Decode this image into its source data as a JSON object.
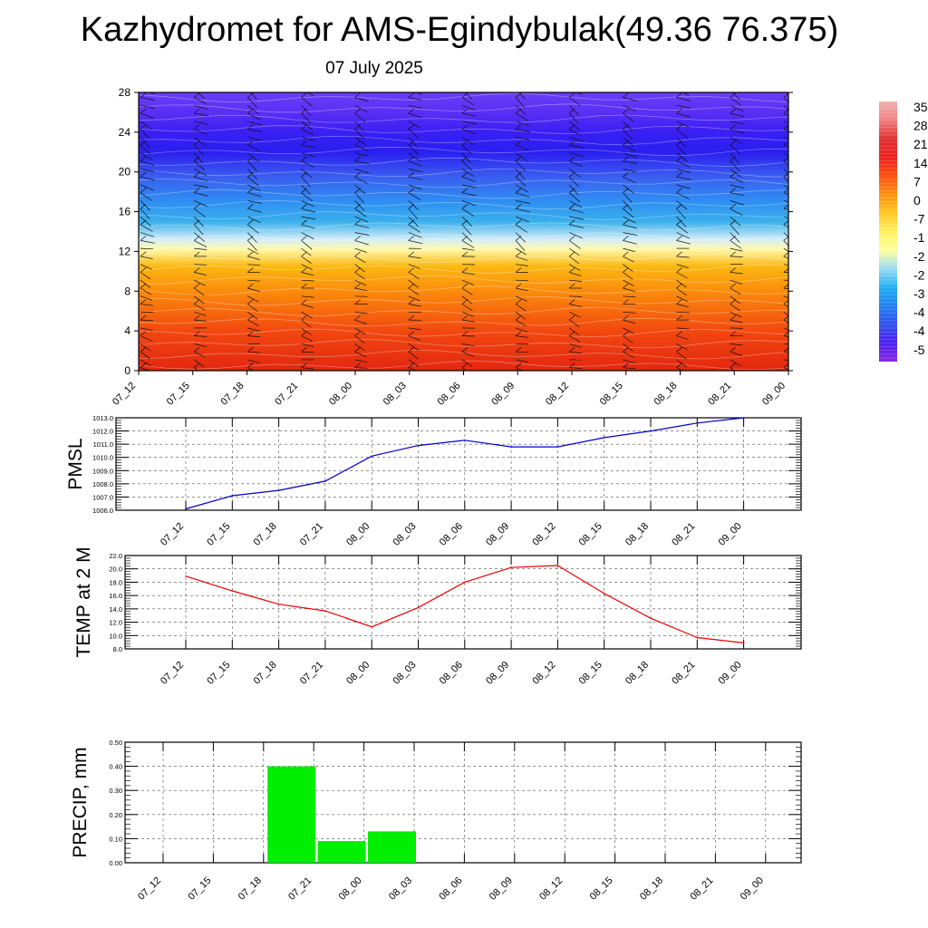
{
  "header": {
    "title": "Kazhydromet for AMS-Egindybulak(49.36 76.375)",
    "subtitle": "07 July 2025"
  },
  "chart_data": [
    {
      "type": "heatmap",
      "title": "",
      "xlabel": "",
      "ylabel": "",
      "x_ticks": [
        "07_12",
        "07_15",
        "07_18",
        "07_21",
        "08_00",
        "08_03",
        "08_06",
        "08_09",
        "08_12",
        "08_15",
        "08_18",
        "08_21",
        "09_00"
      ],
      "y_ticks": [
        "0",
        "4",
        "8",
        "12",
        "16",
        "20",
        "24",
        "28"
      ],
      "ylim": [
        0,
        28
      ],
      "colorbar_labels": [
        "35",
        "28",
        "21",
        "14",
        "7",
        "0",
        "-7",
        "-1",
        "-2",
        "-2",
        "-3",
        "-4",
        "-4",
        "-5"
      ],
      "color_stops": [
        {
          "level": 0,
          "color": "#e32611"
        },
        {
          "level": 4,
          "color": "#f2480f"
        },
        {
          "level": 8,
          "color": "#fb8c0c"
        },
        {
          "level": 10.5,
          "color": "#fbb812"
        },
        {
          "level": 12.2,
          "color": "#fff8a8"
        },
        {
          "level": 13.2,
          "color": "#d6eef8"
        },
        {
          "level": 15,
          "color": "#3ab0ec"
        },
        {
          "level": 17,
          "color": "#2f8ff2"
        },
        {
          "level": 19.5,
          "color": "#3a5ef0"
        },
        {
          "level": 22,
          "color": "#2a1ff0"
        },
        {
          "level": 24,
          "color": "#3a1ff3"
        },
        {
          "level": 26,
          "color": "#5a2ff5"
        },
        {
          "level": 28,
          "color": "#6a3ff8"
        }
      ],
      "wind_barbs": "present"
    },
    {
      "type": "line",
      "ylabel": "PMSL",
      "x_ticks": [
        "07_12",
        "07_15",
        "07_18",
        "07_21",
        "08_00",
        "08_03",
        "08_06",
        "08_09",
        "08_12",
        "08_15",
        "08_18",
        "08_21",
        "09_00"
      ],
      "y_ticks": [
        "1006.0",
        "1007.0",
        "1008.0",
        "1009.0",
        "1010.0",
        "1011.0",
        "1012.0",
        "1013.0"
      ],
      "ylim": [
        1006.0,
        1013.0
      ],
      "series": [
        {
          "values": [
            1006.1,
            1007.1,
            1007.5,
            1008.2,
            1010.1,
            1010.9,
            1011.3,
            1010.8,
            1010.8,
            1011.5,
            1012.0,
            1012.6,
            1013.0
          ],
          "color": "#0000cc"
        }
      ],
      "grid": true
    },
    {
      "type": "line",
      "ylabel": "TEMP at 2 M",
      "x_ticks": [
        "07_12",
        "07_15",
        "07_18",
        "07_21",
        "08_00",
        "08_03",
        "08_06",
        "08_09",
        "08_12",
        "08_15",
        "08_18",
        "08_21",
        "09_00"
      ],
      "y_ticks": [
        "8.0",
        "10.0",
        "12.0",
        "14.0",
        "16.0",
        "18.0",
        "20.0",
        "22.0"
      ],
      "ylim": [
        8.0,
        22.0
      ],
      "series": [
        {
          "values": [
            18.9,
            16.7,
            14.7,
            13.7,
            11.3,
            14.2,
            18.0,
            20.2,
            20.5,
            16.3,
            12.6,
            9.7,
            8.9
          ],
          "color": "#ee0000"
        }
      ],
      "grid": true
    },
    {
      "type": "bar",
      "ylabel": "PRECIP, mm",
      "categories": [
        "07_12",
        "07_15",
        "07_18",
        "07_21",
        "08_00",
        "08_03",
        "08_06",
        "08_09",
        "08_12",
        "08_15",
        "08_18",
        "08_21",
        "09_00"
      ],
      "y_ticks": [
        "0.00",
        "0.10",
        "0.20",
        "0.30",
        "0.40",
        "0.50"
      ],
      "ylim": [
        0,
        0.5
      ],
      "values": [
        0,
        0,
        0,
        0.4,
        0.09,
        0.13,
        0,
        0,
        0,
        0,
        0,
        0,
        0
      ],
      "color": "#00ee00",
      "grid": true
    }
  ]
}
